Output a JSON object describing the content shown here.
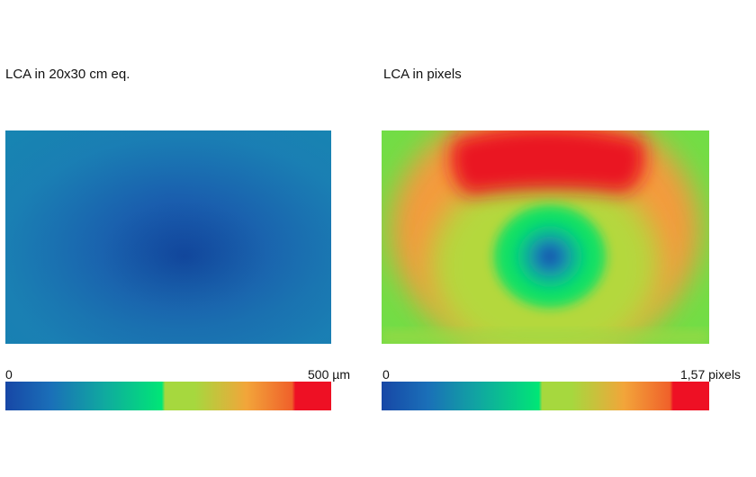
{
  "chart_data": [
    {
      "type": "heatmap",
      "title": "LCA in 20x30 cm eq.",
      "colorbar": {
        "min_label": "0",
        "max_label": "500 µm",
        "range": [
          0,
          500
        ],
        "stops": [
          "#1747a6",
          "#1a6fb8",
          "#10a8a0",
          "#00e676",
          "#a6d83e",
          "#f2a53a",
          "#f0602a",
          "#ee1024"
        ]
      },
      "field": {
        "description_shape": "radial",
        "center": [
          0.55,
          0.59
        ],
        "center_value": 0,
        "edge_value": 0.22
      }
    },
    {
      "type": "heatmap",
      "title": "LCA in pixels",
      "colorbar": {
        "min_label": "0",
        "max_label": "1,57 pixels",
        "range": [
          0,
          1.57
        ],
        "stops": [
          "#1747a6",
          "#1a6fb8",
          "#10a8a0",
          "#00e676",
          "#a6d83e",
          "#f2a53a",
          "#f0602a",
          "#ee1024"
        ]
      },
      "field": {
        "center": [
          0.5,
          0.59
        ],
        "center_value": 0
      }
    }
  ]
}
